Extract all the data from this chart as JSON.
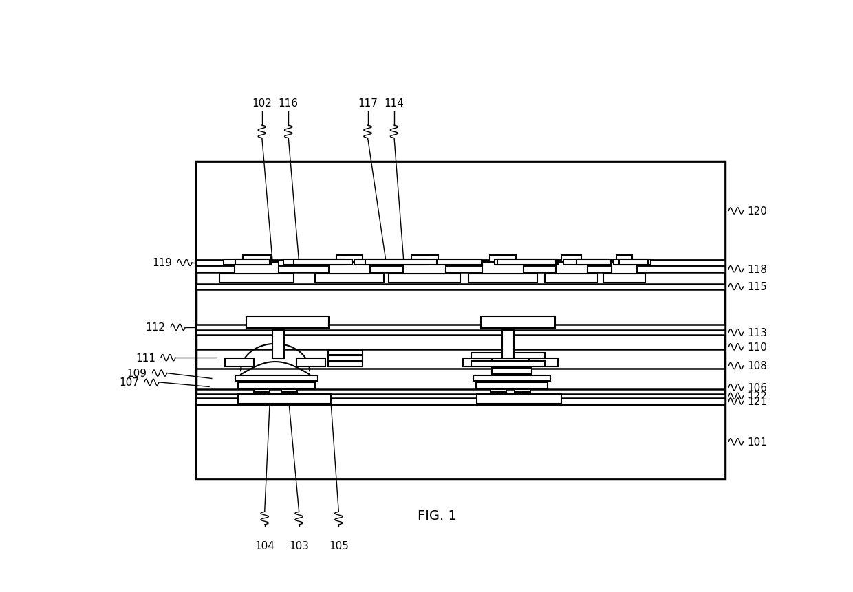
{
  "fig_width": 12.4,
  "fig_height": 8.62,
  "dpi": 100,
  "title": "FIG. 1",
  "bx": 0.135,
  "by": 0.105,
  "bw": 0.8,
  "bh": 0.695,
  "font_size": 11,
  "right_labels": [
    "120",
    "118",
    "115",
    "113",
    "110",
    "108",
    "106",
    "122",
    "121",
    "101"
  ],
  "left_labels": [
    "119",
    "112",
    "111",
    "109",
    "107"
  ],
  "top_labels": [
    "102",
    "116",
    "117",
    "114"
  ],
  "bottom_labels": [
    "104",
    "103",
    "105"
  ]
}
